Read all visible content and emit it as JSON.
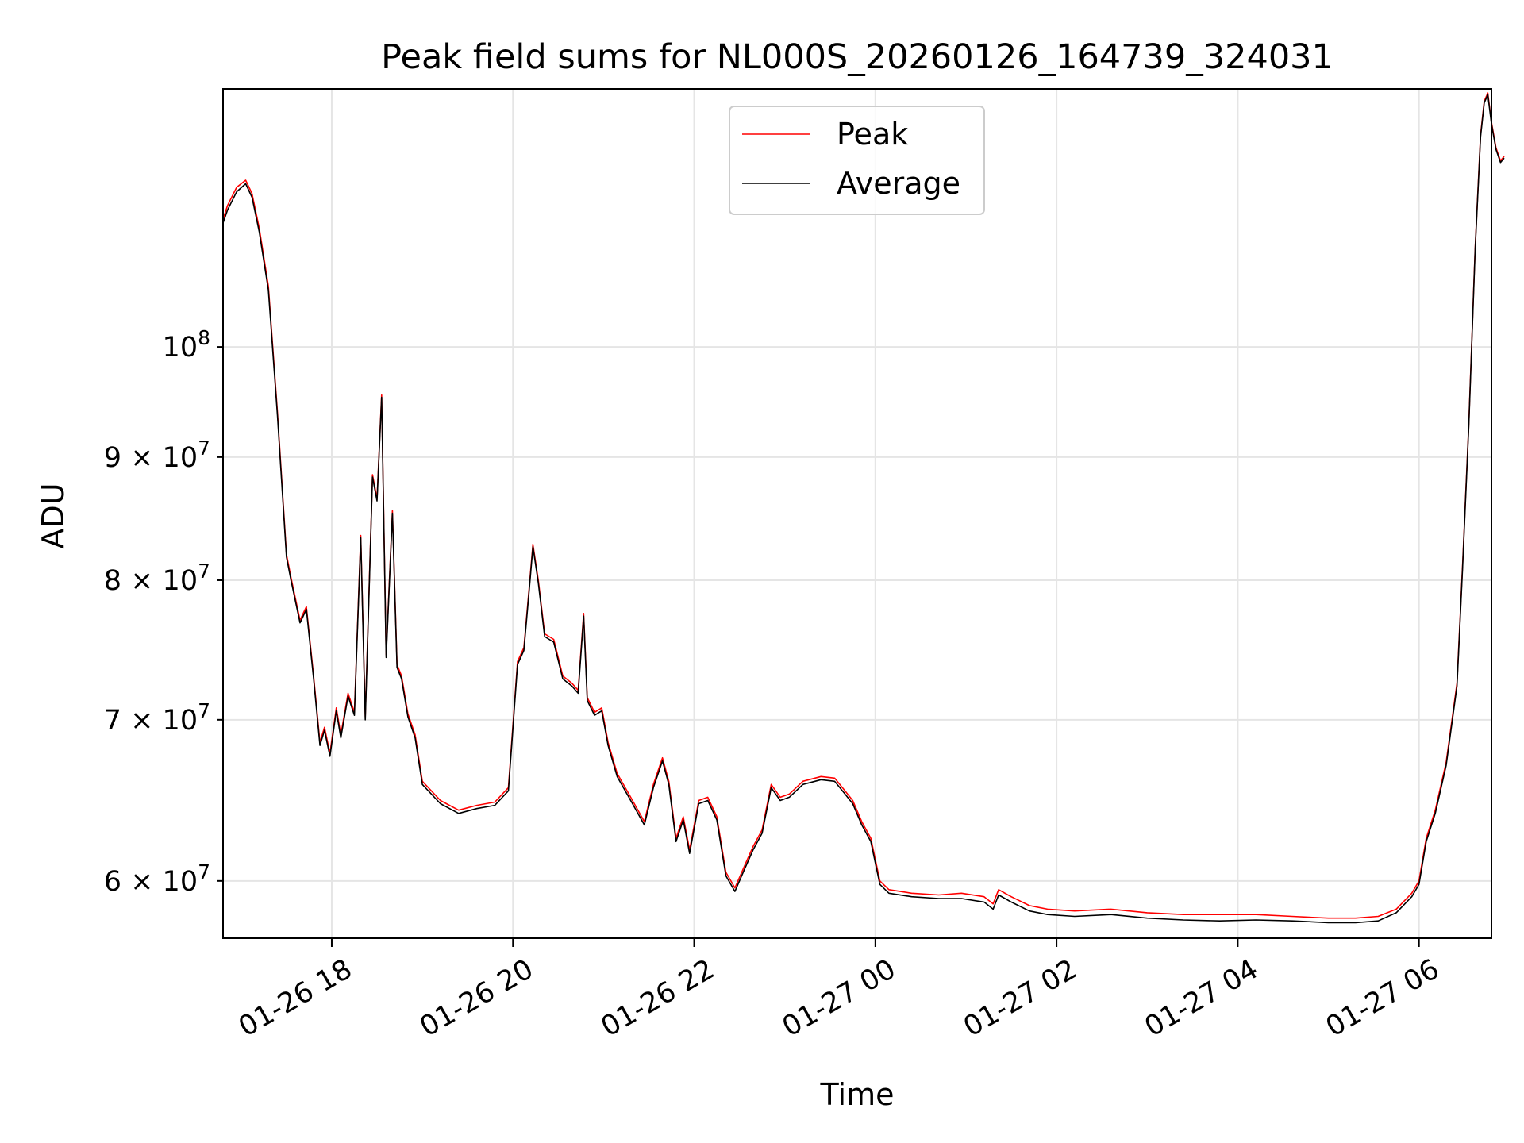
{
  "chart_data": {
    "type": "line",
    "title": "Peak field sums for NL000S_20260126_164739_324031",
    "xlabel": "Time",
    "ylabel": "ADU",
    "yscale": "log",
    "ylim": [
      56800000,
      128000000
    ],
    "xlim_hours": [
      16.8,
      6.8
    ],
    "x_tick_labels": [
      "01-26 18",
      "01-26 20",
      "01-26 22",
      "01-27 00",
      "01-27 02",
      "01-27 04",
      "01-27 06"
    ],
    "x_tick_hours": [
      18,
      20,
      22,
      24,
      26,
      28,
      30
    ],
    "y_ticks": [
      {
        "value": 60000000,
        "mantissa": "6",
        "exponent": "7"
      },
      {
        "value": 70000000,
        "mantissa": "7",
        "exponent": "7"
      },
      {
        "value": 80000000,
        "mantissa": "8",
        "exponent": "7"
      },
      {
        "value": 90000000,
        "mantissa": "9",
        "exponent": "7"
      },
      {
        "value": 100000000,
        "mantissa": "",
        "exponent": "8"
      }
    ],
    "grid": true,
    "legend": {
      "position": "top-center",
      "entries": [
        {
          "label": "Peak",
          "color": "#ff0000"
        },
        {
          "label": "Average",
          "color": "#000000"
        }
      ]
    },
    "series": [
      {
        "name": "Peak",
        "color": "#ff0000",
        "points": [
          [
            16.8,
            113000000
          ],
          [
            16.85,
            114500000
          ],
          [
            16.95,
            116500000
          ],
          [
            17.05,
            117300000
          ],
          [
            17.12,
            115800000
          ],
          [
            17.2,
            112000000
          ],
          [
            17.3,
            106000000
          ],
          [
            17.4,
            94000000
          ],
          [
            17.5,
            82000000
          ],
          [
            17.55,
            80200000
          ],
          [
            17.65,
            77000000
          ],
          [
            17.72,
            78000000
          ],
          [
            17.8,
            73000000
          ],
          [
            17.87,
            68500000
          ],
          [
            17.92,
            69500000
          ],
          [
            17.98,
            67800000
          ],
          [
            18.05,
            70800000
          ],
          [
            18.1,
            69000000
          ],
          [
            18.18,
            71800000
          ],
          [
            18.25,
            70500000
          ],
          [
            18.32,
            83500000
          ],
          [
            18.37,
            70200000
          ],
          [
            18.45,
            88500000
          ],
          [
            18.5,
            86500000
          ],
          [
            18.55,
            95500000
          ],
          [
            18.6,
            74500000
          ],
          [
            18.67,
            85500000
          ],
          [
            18.72,
            73800000
          ],
          [
            18.77,
            73000000
          ],
          [
            18.84,
            70400000
          ],
          [
            18.92,
            69000000
          ],
          [
            19.0,
            66000000
          ],
          [
            19.2,
            64800000
          ],
          [
            19.4,
            64200000
          ],
          [
            19.6,
            64500000
          ],
          [
            19.8,
            64700000
          ],
          [
            19.95,
            65600000
          ],
          [
            20.05,
            74000000
          ],
          [
            20.12,
            75000000
          ],
          [
            20.18,
            79500000
          ],
          [
            20.22,
            82800000
          ],
          [
            20.28,
            80000000
          ],
          [
            20.35,
            76000000
          ],
          [
            20.45,
            75600000
          ],
          [
            20.55,
            73000000
          ],
          [
            20.65,
            72500000
          ],
          [
            20.72,
            72000000
          ],
          [
            20.78,
            77500000
          ],
          [
            20.82,
            71500000
          ],
          [
            20.9,
            70500000
          ],
          [
            20.98,
            70800000
          ],
          [
            21.05,
            68500000
          ],
          [
            21.15,
            66500000
          ],
          [
            21.3,
            65000000
          ],
          [
            21.45,
            63500000
          ],
          [
            21.55,
            65800000
          ],
          [
            21.65,
            67500000
          ],
          [
            21.72,
            66000000
          ],
          [
            21.8,
            62500000
          ],
          [
            21.88,
            63800000
          ],
          [
            21.95,
            61800000
          ],
          [
            22.05,
            64800000
          ],
          [
            22.15,
            65000000
          ],
          [
            22.25,
            63800000
          ],
          [
            22.35,
            60500000
          ],
          [
            22.45,
            59600000
          ],
          [
            22.55,
            60800000
          ],
          [
            22.65,
            62000000
          ],
          [
            22.75,
            63000000
          ],
          [
            22.85,
            65800000
          ],
          [
            22.95,
            65000000
          ],
          [
            23.05,
            65200000
          ],
          [
            23.2,
            66000000
          ],
          [
            23.4,
            66300000
          ],
          [
            23.55,
            66200000
          ],
          [
            23.65,
            65500000
          ],
          [
            23.75,
            64800000
          ],
          [
            23.85,
            63500000
          ],
          [
            23.95,
            62500000
          ],
          [
            24.05,
            60000000
          ],
          [
            24.15,
            59500000
          ],
          [
            24.4,
            59300000
          ],
          [
            24.7,
            59200000
          ],
          [
            24.95,
            59300000
          ],
          [
            25.2,
            59100000
          ],
          [
            25.3,
            58700000
          ],
          [
            25.36,
            59500000
          ],
          [
            25.5,
            59100000
          ],
          [
            25.7,
            58600000
          ],
          [
            25.9,
            58400000
          ],
          [
            26.2,
            58300000
          ],
          [
            26.6,
            58400000
          ],
          [
            27.0,
            58200000
          ],
          [
            27.4,
            58100000
          ],
          [
            27.8,
            58100000
          ],
          [
            28.2,
            58100000
          ],
          [
            28.6,
            58000000
          ],
          [
            29.0,
            57900000
          ],
          [
            29.3,
            57900000
          ],
          [
            29.55,
            58000000
          ],
          [
            29.75,
            58400000
          ],
          [
            29.92,
            59300000
          ],
          [
            30.0,
            60000000
          ],
          [
            30.08,
            62500000
          ],
          [
            30.18,
            64200000
          ],
          [
            30.3,
            67200000
          ],
          [
            30.42,
            72500000
          ],
          [
            30.48,
            81000000
          ],
          [
            30.55,
            93000000
          ],
          [
            30.62,
            110000000
          ],
          [
            30.68,
            122500000
          ],
          [
            30.72,
            126500000
          ],
          [
            30.76,
            127500000
          ],
          [
            30.8,
            124000000
          ],
          [
            30.85,
            121000000
          ],
          [
            30.9,
            119500000
          ],
          [
            30.94,
            120000000
          ]
        ]
      },
      {
        "name": "Average",
        "color": "#000000",
        "points": [
          [
            16.8,
            112600000
          ],
          [
            16.85,
            114000000
          ],
          [
            16.95,
            116000000
          ],
          [
            17.05,
            116900000
          ],
          [
            17.12,
            115400000
          ],
          [
            17.2,
            111600000
          ],
          [
            17.3,
            105600000
          ],
          [
            17.4,
            93700000
          ],
          [
            17.5,
            81800000
          ],
          [
            17.55,
            80000000
          ],
          [
            17.65,
            76800000
          ],
          [
            17.72,
            77800000
          ],
          [
            17.8,
            72800000
          ],
          [
            17.87,
            68300000
          ],
          [
            17.92,
            69300000
          ],
          [
            17.98,
            67600000
          ],
          [
            18.05,
            70600000
          ],
          [
            18.1,
            68800000
          ],
          [
            18.18,
            71600000
          ],
          [
            18.25,
            70300000
          ],
          [
            18.32,
            83300000
          ],
          [
            18.37,
            70000000
          ],
          [
            18.45,
            88300000
          ],
          [
            18.5,
            86300000
          ],
          [
            18.55,
            95300000
          ],
          [
            18.6,
            74300000
          ],
          [
            18.67,
            85300000
          ],
          [
            18.72,
            73600000
          ],
          [
            18.77,
            72800000
          ],
          [
            18.84,
            70200000
          ],
          [
            18.92,
            68800000
          ],
          [
            19.0,
            65800000
          ],
          [
            19.2,
            64600000
          ],
          [
            19.4,
            64000000
          ],
          [
            19.6,
            64300000
          ],
          [
            19.8,
            64500000
          ],
          [
            19.95,
            65400000
          ],
          [
            20.05,
            73800000
          ],
          [
            20.12,
            74800000
          ],
          [
            20.18,
            79300000
          ],
          [
            20.22,
            82600000
          ],
          [
            20.28,
            79800000
          ],
          [
            20.35,
            75800000
          ],
          [
            20.45,
            75400000
          ],
          [
            20.55,
            72800000
          ],
          [
            20.65,
            72300000
          ],
          [
            20.72,
            71800000
          ],
          [
            20.78,
            77300000
          ],
          [
            20.82,
            71300000
          ],
          [
            20.9,
            70300000
          ],
          [
            20.98,
            70600000
          ],
          [
            21.05,
            68300000
          ],
          [
            21.15,
            66300000
          ],
          [
            21.3,
            64800000
          ],
          [
            21.45,
            63300000
          ],
          [
            21.55,
            65600000
          ],
          [
            21.65,
            67300000
          ],
          [
            21.72,
            65800000
          ],
          [
            21.8,
            62300000
          ],
          [
            21.88,
            63600000
          ],
          [
            21.95,
            61600000
          ],
          [
            22.05,
            64600000
          ],
          [
            22.15,
            64800000
          ],
          [
            22.25,
            63600000
          ],
          [
            22.35,
            60300000
          ],
          [
            22.45,
            59400000
          ],
          [
            22.55,
            60600000
          ],
          [
            22.65,
            61800000
          ],
          [
            22.75,
            62800000
          ],
          [
            22.85,
            65600000
          ],
          [
            22.95,
            64800000
          ],
          [
            23.05,
            65000000
          ],
          [
            23.2,
            65800000
          ],
          [
            23.4,
            66100000
          ],
          [
            23.55,
            66000000
          ],
          [
            23.65,
            65300000
          ],
          [
            23.75,
            64600000
          ],
          [
            23.85,
            63300000
          ],
          [
            23.95,
            62300000
          ],
          [
            24.05,
            59800000
          ],
          [
            24.15,
            59300000
          ],
          [
            24.4,
            59100000
          ],
          [
            24.7,
            59000000
          ],
          [
            24.95,
            59000000
          ],
          [
            25.2,
            58800000
          ],
          [
            25.3,
            58400000
          ],
          [
            25.36,
            59200000
          ],
          [
            25.5,
            58800000
          ],
          [
            25.7,
            58300000
          ],
          [
            25.9,
            58100000
          ],
          [
            26.2,
            58000000
          ],
          [
            26.6,
            58100000
          ],
          [
            27.0,
            57900000
          ],
          [
            27.4,
            57800000
          ],
          [
            27.8,
            57750000
          ],
          [
            28.2,
            57800000
          ],
          [
            28.6,
            57750000
          ],
          [
            29.0,
            57650000
          ],
          [
            29.3,
            57650000
          ],
          [
            29.55,
            57750000
          ],
          [
            29.75,
            58200000
          ],
          [
            29.92,
            59100000
          ],
          [
            30.0,
            59800000
          ],
          [
            30.08,
            62300000
          ],
          [
            30.18,
            64000000
          ],
          [
            30.3,
            67000000
          ],
          [
            30.42,
            72300000
          ],
          [
            30.48,
            80800000
          ],
          [
            30.55,
            92800000
          ],
          [
            30.62,
            109800000
          ],
          [
            30.68,
            122300000
          ],
          [
            30.72,
            126300000
          ],
          [
            30.76,
            127300000
          ],
          [
            30.8,
            123800000
          ],
          [
            30.85,
            120800000
          ],
          [
            30.9,
            119300000
          ],
          [
            30.94,
            119800000
          ]
        ]
      }
    ]
  }
}
